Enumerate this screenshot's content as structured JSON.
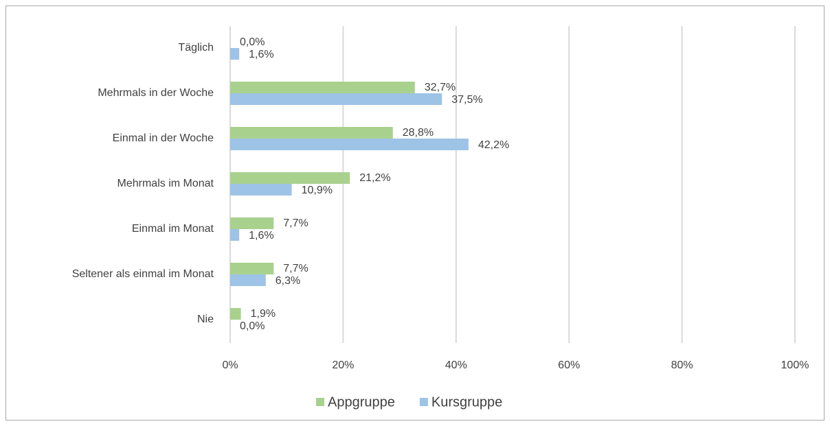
{
  "chart_data": {
    "type": "barh",
    "categories": [
      "Täglich",
      "Mehrmals in der Woche",
      "Einmal in der Woche",
      "Mehrmals im Monat",
      "Einmal im Monat",
      "Seltener als einmal im Monat",
      "Nie"
    ],
    "series": [
      {
        "name": "Appgruppe",
        "color": "#a9d18e",
        "values": [
          0.0,
          32.7,
          28.8,
          21.2,
          7.7,
          7.7,
          1.9
        ],
        "value_labels": [
          "0,0%",
          "32,7%",
          "28,8%",
          "21,2%",
          "7,7%",
          "7,7%",
          "1,9%"
        ]
      },
      {
        "name": "Kursgruppe",
        "color": "#9dc3e6",
        "values": [
          1.6,
          37.5,
          42.2,
          10.9,
          1.6,
          6.3,
          0.0
        ],
        "value_labels": [
          "1,6%",
          "37,5%",
          "42,2%",
          "10,9%",
          "1,6%",
          "6,3%",
          "0,0%"
        ]
      }
    ],
    "xlim": [
      0,
      100
    ],
    "xticks": [
      {
        "value": 0,
        "label": "0%"
      },
      {
        "value": 20,
        "label": "20%"
      },
      {
        "value": 40,
        "label": "40%"
      },
      {
        "value": 60,
        "label": "60%"
      },
      {
        "value": 80,
        "label": "80%"
      },
      {
        "value": 100,
        "label": "100%"
      }
    ],
    "grid": true,
    "legend": "bottom"
  }
}
